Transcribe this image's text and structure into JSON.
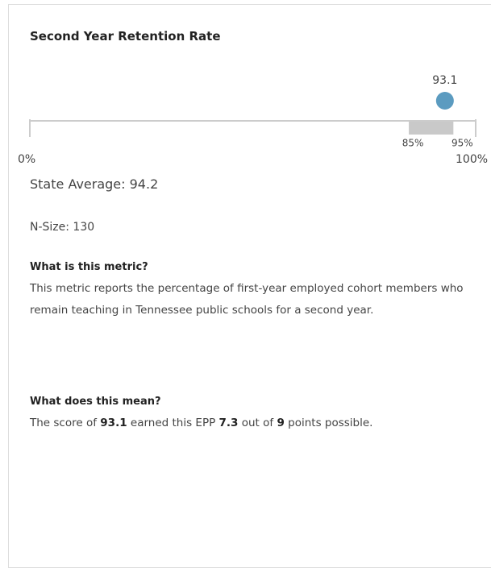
{
  "title": "Second Year Retention Rate",
  "gauge": {
    "value": 93.1,
    "xlim": [
      0,
      100
    ],
    "xticks": [
      {
        "value": 0,
        "label": "0%"
      },
      {
        "value": 100,
        "label": "100%"
      }
    ],
    "band": [
      {
        "value": 85,
        "label": "85%"
      },
      {
        "value": 95,
        "label": "95%"
      }
    ],
    "color": "#5b9bc0",
    "band_color": "#c9c9c9"
  },
  "state_average": "State Average: 94.2",
  "n_size": "N-Size: 130",
  "sections": [
    {
      "heading": "What is this metric?",
      "text": "This metric reports the percentage of first-year employed cohort members who remain teaching in Tennessee public schools for a second year."
    },
    {
      "heading": "What does this mean?",
      "parts": [
        "The score of ",
        "93.1",
        " earned this EPP ",
        "7.3",
        " out of ",
        "9",
        " points possible."
      ]
    }
  ]
}
